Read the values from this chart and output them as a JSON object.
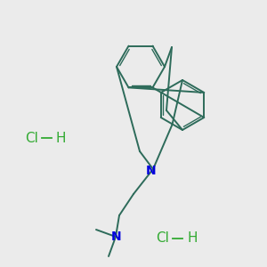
{
  "background_color": "#ebebeb",
  "bond_color": "#2d6b5a",
  "N_color": "#0000dd",
  "Cl_color": "#33aa33",
  "line_width": 1.4,
  "font_size_atom": 10,
  "font_size_hcl": 11,
  "HCl1": [
    28,
    155
  ],
  "HCl2": [
    175,
    268
  ]
}
